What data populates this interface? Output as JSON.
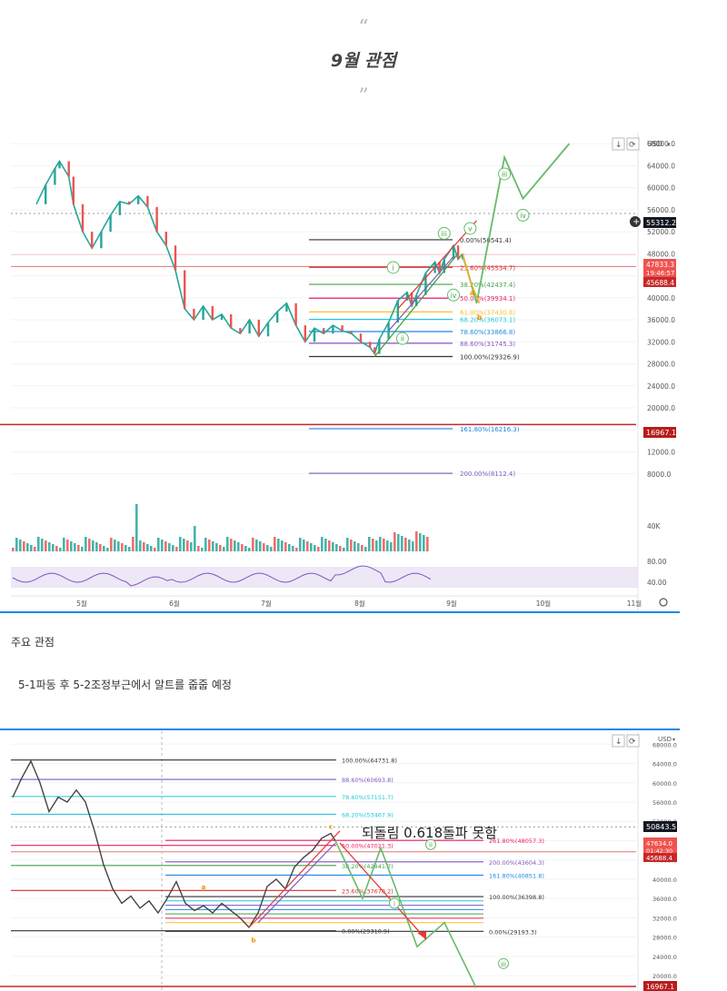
{
  "post": {
    "quote_open": "“",
    "title": "9월 관점",
    "quote_close": "”",
    "section_label": "주요 관점",
    "section_text": "5-1파동 후 5-2조정부근에서 알트를 줍줍 예정"
  },
  "chart_data": [
    {
      "type": "line",
      "title": "",
      "xlabel": "",
      "ylabel": "",
      "currency": "USD",
      "x_ticks": [
        "5월",
        "6월",
        "7월",
        "8월",
        "9월",
        "10월",
        "11월"
      ],
      "y_ticks": [
        "68000.0",
        "64000.0",
        "60000.0",
        "56000.0",
        "52000.0",
        "48000.0",
        "44000.0",
        "40000.0",
        "36000.0",
        "32000.0",
        "28000.0",
        "24000.0",
        "20000.0",
        "16000.0",
        "12000.0",
        "8000.0"
      ],
      "ylim": [
        4000,
        70000
      ],
      "price_labels": {
        "current": "55312.2",
        "red_top": "47833.3",
        "countdown": "19:46:57",
        "red_bottom": "45688.4",
        "support": "16967.1"
      },
      "fib_levels": [
        {
          "label": "0.00%(50541.4)",
          "value": 50541.4,
          "color": "#333333"
        },
        {
          "label": "23.60%(45534.7)",
          "value": 45534.7,
          "color": "#d32f2f"
        },
        {
          "label": "38.20%(42437.4)",
          "value": 42437.4,
          "color": "#43a047"
        },
        {
          "label": "50.00%(39934.1)",
          "value": 39934.1,
          "color": "#e91e63"
        },
        {
          "label": "61.80%(37430.8)",
          "value": 37430.8,
          "color": "#fbc02d"
        },
        {
          "label": "68.20%(36073.1)",
          "value": 36073.1,
          "color": "#26c6da"
        },
        {
          "label": "78.60%(33866.8)",
          "value": 33866.8,
          "color": "#1e88e5"
        },
        {
          "label": "88.60%(31745.3)",
          "value": 31745.3,
          "color": "#7e57c2"
        },
        {
          "label": "100.00%(29326.9)",
          "value": 29326.9,
          "color": "#333333"
        },
        {
          "label": "161.80%(16216.3)",
          "value": 16216.3,
          "color": "#1e88e5"
        },
        {
          "label": "200.00%(8112.4)",
          "value": 8112.4,
          "color": "#7e57c2"
        }
      ],
      "wave_labels": [
        "i",
        "ii",
        "iii",
        "iv",
        "v",
        "iii",
        "iv",
        "a",
        "b"
      ],
      "price_series": [
        {
          "m": 0.0,
          "v": 57000
        },
        {
          "m": 0.1,
          "v": 60500
        },
        {
          "m": 0.2,
          "v": 63500
        },
        {
          "m": 0.25,
          "v": 64800
        },
        {
          "m": 0.35,
          "v": 62000
        },
        {
          "m": 0.4,
          "v": 57000
        },
        {
          "m": 0.5,
          "v": 52000
        },
        {
          "m": 0.6,
          "v": 49000
        },
        {
          "m": 0.7,
          "v": 52000
        },
        {
          "m": 0.8,
          "v": 55000
        },
        {
          "m": 0.9,
          "v": 57500
        },
        {
          "m": 1.0,
          "v": 57000
        },
        {
          "m": 1.1,
          "v": 58500
        },
        {
          "m": 1.2,
          "v": 56500
        },
        {
          "m": 1.3,
          "v": 52000
        },
        {
          "m": 1.4,
          "v": 49500
        },
        {
          "m": 1.5,
          "v": 45000
        },
        {
          "m": 1.6,
          "v": 38000
        },
        {
          "m": 1.7,
          "v": 36000
        },
        {
          "m": 1.8,
          "v": 38500
        },
        {
          "m": 1.9,
          "v": 36000
        },
        {
          "m": 2.0,
          "v": 37000
        },
        {
          "m": 2.1,
          "v": 34500
        },
        {
          "m": 2.2,
          "v": 33500
        },
        {
          "m": 2.3,
          "v": 36000
        },
        {
          "m": 2.4,
          "v": 33000
        },
        {
          "m": 2.5,
          "v": 35500
        },
        {
          "m": 2.6,
          "v": 37500
        },
        {
          "m": 2.7,
          "v": 39000
        },
        {
          "m": 2.8,
          "v": 35000
        },
        {
          "m": 2.9,
          "v": 32000
        },
        {
          "m": 3.0,
          "v": 34500
        },
        {
          "m": 3.1,
          "v": 33500
        },
        {
          "m": 3.2,
          "v": 35000
        },
        {
          "m": 3.3,
          "v": 34000
        },
        {
          "m": 3.4,
          "v": 33500
        },
        {
          "m": 3.5,
          "v": 32000
        },
        {
          "m": 3.6,
          "v": 31000
        },
        {
          "m": 3.65,
          "v": 29800
        },
        {
          "m": 3.7,
          "v": 32500
        },
        {
          "m": 3.8,
          "v": 35500
        },
        {
          "m": 3.9,
          "v": 39500
        },
        {
          "m": 4.0,
          "v": 41000
        },
        {
          "m": 4.05,
          "v": 38500
        },
        {
          "m": 4.1,
          "v": 40500
        },
        {
          "m": 4.2,
          "v": 44500
        },
        {
          "m": 4.3,
          "v": 46500
        },
        {
          "m": 4.35,
          "v": 44500
        },
        {
          "m": 4.4,
          "v": 47000
        },
        {
          "m": 4.5,
          "v": 49500
        },
        {
          "m": 4.55,
          "v": 47000
        },
        {
          "m": 4.6,
          "v": 48000
        }
      ],
      "projection": [
        {
          "m": 4.6,
          "v": 47500
        },
        {
          "m": 4.65,
          "v": 45000
        },
        {
          "m": 4.75,
          "v": 39000
        },
        {
          "m": 5.05,
          "v": 65500
        },
        {
          "m": 5.25,
          "v": 58000
        },
        {
          "m": 5.75,
          "v": 68000
        }
      ]
    },
    {
      "type": "line",
      "title": "",
      "annotation": "되돌림 0.618돌파 못함",
      "currency": "USD",
      "y_ticks": [
        "68000.0",
        "64000.0",
        "60000.0",
        "56000.0",
        "52000.0",
        "48000.0",
        "44000.0",
        "40000.0",
        "36000.0",
        "32000.0",
        "28000.0",
        "24000.0",
        "20000.0"
      ],
      "ylim": [
        17000,
        69000
      ],
      "price_labels": {
        "current": "50843.5",
        "red_top": "47634.0",
        "countdown": "01:42:30",
        "red_bottom": "45688.4",
        "support": "16967.1"
      },
      "fib_levels": [
        {
          "label": "100.00%(64731.8)",
          "value": 64731.8,
          "color": "#333333"
        },
        {
          "label": "88.60%(60693.8)",
          "value": 60693.8,
          "color": "#7e57c2"
        },
        {
          "label": "78.60%(57151.7)",
          "value": 57151.7,
          "color": "#26c6da"
        },
        {
          "label": "68.20%(53467.9)",
          "value": 53467.9,
          "color": "#26c6da"
        },
        {
          "label": "50.00%(47021.3)",
          "value": 47021.3,
          "color": "#e91e63"
        },
        {
          "label": "38.20%(42841.7)",
          "value": 42841.7,
          "color": "#43a047"
        },
        {
          "label": "23.60%(37670.2)",
          "value": 37670.2,
          "color": "#d32f2f"
        },
        {
          "label": "0.00%(29310.9)",
          "value": 29310.9,
          "color": "#333333"
        }
      ],
      "fib_ext_levels": [
        {
          "label": "261.80%(48057.3)",
          "value": 48057.3,
          "color": "#e91e63"
        },
        {
          "label": "200.00%(43604.3)",
          "value": 43604.3,
          "color": "#7e57c2"
        },
        {
          "label": "161.80%(40851.8)",
          "value": 40851.8,
          "color": "#1e88e5"
        },
        {
          "label": "100.00%(36398.8)",
          "value": 36398.8,
          "color": "#333333"
        },
        {
          "label": "0.00%(29193.3)",
          "value": 29193.3,
          "color": "#333333"
        }
      ],
      "wave_labels": [
        "a",
        "b",
        "c",
        "ii",
        "i",
        "iii"
      ],
      "price_series": [
        {
          "m": 0.0,
          "v": 57000
        },
        {
          "m": 0.1,
          "v": 61000
        },
        {
          "m": 0.2,
          "v": 64500
        },
        {
          "m": 0.3,
          "v": 60000
        },
        {
          "m": 0.4,
          "v": 54000
        },
        {
          "m": 0.5,
          "v": 57000
        },
        {
          "m": 0.6,
          "v": 56000
        },
        {
          "m": 0.7,
          "v": 58500
        },
        {
          "m": 0.8,
          "v": 56000
        },
        {
          "m": 0.9,
          "v": 50000
        },
        {
          "m": 1.0,
          "v": 43000
        },
        {
          "m": 1.1,
          "v": 38000
        },
        {
          "m": 1.2,
          "v": 35000
        },
        {
          "m": 1.3,
          "v": 36500
        },
        {
          "m": 1.4,
          "v": 34000
        },
        {
          "m": 1.5,
          "v": 35500
        },
        {
          "m": 1.6,
          "v": 33000
        },
        {
          "m": 1.7,
          "v": 36000
        },
        {
          "m": 1.8,
          "v": 39500
        },
        {
          "m": 1.9,
          "v": 35000
        },
        {
          "m": 2.0,
          "v": 33500
        },
        {
          "m": 2.1,
          "v": 34500
        },
        {
          "m": 2.2,
          "v": 33000
        },
        {
          "m": 2.3,
          "v": 35000
        },
        {
          "m": 2.4,
          "v": 33500
        },
        {
          "m": 2.5,
          "v": 32000
        },
        {
          "m": 2.6,
          "v": 30000
        },
        {
          "m": 2.7,
          "v": 33000
        },
        {
          "m": 2.8,
          "v": 38500
        },
        {
          "m": 2.9,
          "v": 40000
        },
        {
          "m": 3.0,
          "v": 38000
        },
        {
          "m": 3.1,
          "v": 42500
        },
        {
          "m": 3.2,
          "v": 44500
        },
        {
          "m": 3.3,
          "v": 46000
        },
        {
          "m": 3.4,
          "v": 48500
        },
        {
          "m": 3.5,
          "v": 49500
        },
        {
          "m": 3.55,
          "v": 48000
        }
      ],
      "projection": [
        {
          "m": 3.55,
          "v": 48000
        },
        {
          "m": 3.85,
          "v": 36000
        },
        {
          "m": 4.05,
          "v": 46500
        },
        {
          "m": 4.45,
          "v": 26000
        },
        {
          "m": 4.75,
          "v": 31000
        },
        {
          "m": 5.1,
          "v": 17500
        }
      ]
    }
  ]
}
